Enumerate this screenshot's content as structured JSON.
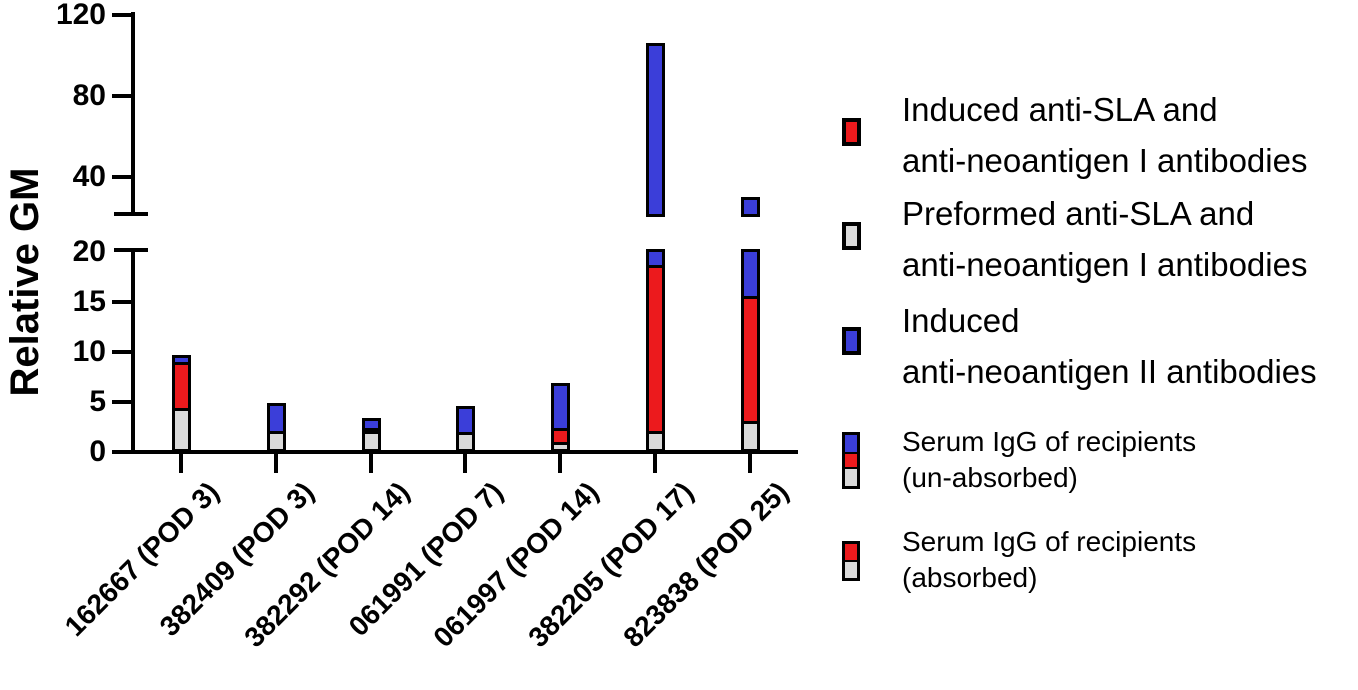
{
  "colors": {
    "red": "#EC1A1D",
    "blue": "#3B3ED9",
    "gray": "#DADADA",
    "axis": "#000000",
    "background": "#FFFFFF"
  },
  "chart_data": {
    "type": "bar",
    "subtype": "stacked vertical bars with broken y-axis",
    "title": "",
    "ylabel": "Relative GM",
    "xlabel": "",
    "grid": false,
    "legend_position": "right",
    "categories": [
      "162667 (POD 3)",
      "382409 (POD 3)",
      "382292 (POD 14)",
      "061991 (POD 7)",
      "061997 (POD 14)",
      "382205 (POD 17)",
      "823838 (POD 25)"
    ],
    "series": [
      {
        "name": "Preformed anti-SLA and anti-neoantigen I antibodies",
        "color": "#DADADA",
        "values": [
          4.2,
          1.9,
          1.9,
          1.8,
          0.8,
          1.9,
          2.9
        ]
      },
      {
        "name": "Induced anti-SLA and anti-neoantigen I antibodies",
        "color": "#EC1A1D",
        "values": [
          4.6,
          0,
          0.3,
          0,
          1.4,
          16.6,
          12.5
        ]
      },
      {
        "name": "Induced anti-neoantigen II antibodies",
        "color": "#3B3ED9",
        "values": [
          0.9,
          3.0,
          1.2,
          2.8,
          4.7,
          87.5,
          14.7
        ]
      }
    ],
    "totals": [
      9.7,
      4.9,
      3.4,
      4.6,
      6.9,
      106,
      30.1
    ],
    "axis_break": {
      "lower_range": [
        0,
        20
      ],
      "lower_ticks": [
        0,
        5,
        10,
        15,
        20
      ],
      "upper_range": [
        20,
        120
      ],
      "upper_ticks": [
        40,
        80,
        120
      ]
    }
  },
  "legend": {
    "items": [
      {
        "swatch": "red",
        "line1": "Induced anti-SLA and",
        "line2": "anti-neoantigen I antibodies"
      },
      {
        "swatch": "gray",
        "line1": "Preformed anti-SLA and",
        "line2": "anti-neoantigen I antibodies"
      },
      {
        "swatch": "blue",
        "line1": "Induced",
        "line2": "anti-neoantigen II antibodies"
      },
      {
        "swatch": "blue-red-gray",
        "line1": "Serum IgG of recipients",
        "line2": "(un-absorbed)"
      },
      {
        "swatch": "red-gray",
        "line1": "Serum IgG of recipients",
        "line2": "(absorbed)"
      }
    ]
  }
}
